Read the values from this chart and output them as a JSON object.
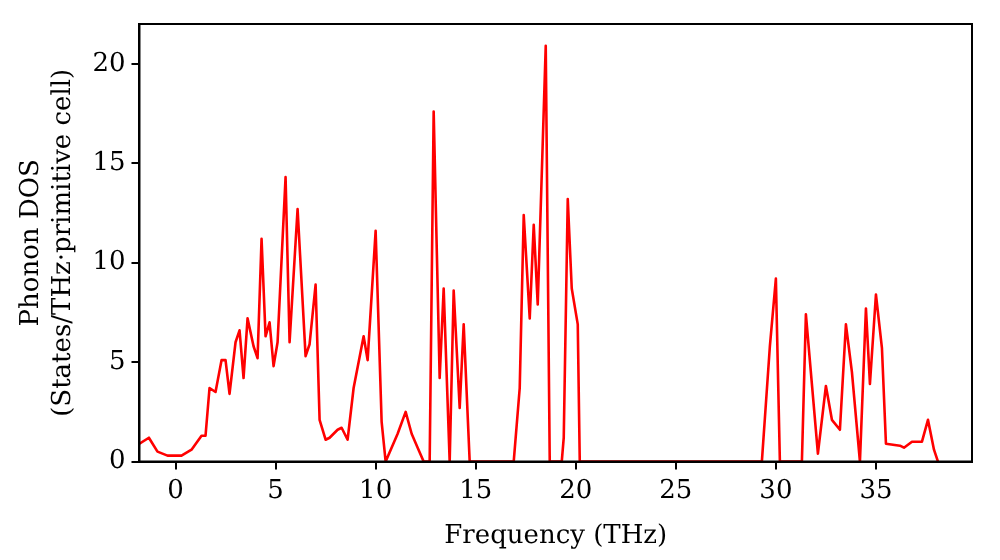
{
  "chart_data": {
    "type": "line",
    "xlabel": "Frequency (THz)",
    "ylabel": "Phonon DOS\n(States/THz·primitive cell)",
    "xlim": [
      -1.8,
      39.8
    ],
    "ylim": [
      0,
      22
    ],
    "xticks": [
      0,
      5,
      10,
      15,
      20,
      25,
      30,
      35
    ],
    "yticks": [
      0,
      5,
      10,
      15,
      20
    ],
    "grid": false,
    "legend": false,
    "marker": "none",
    "line_style": "solid",
    "series": [
      {
        "color": "#ff0000",
        "x": [
          -1.8,
          -1.33,
          -0.9,
          -0.4,
          0.3,
          0.8,
          1.3,
          1.5,
          1.7,
          2.0,
          2.3,
          2.5,
          2.7,
          3.0,
          3.2,
          3.4,
          3.6,
          3.9,
          4.1,
          4.3,
          4.5,
          4.7,
          4.9,
          5.1,
          5.5,
          5.7,
          6.1,
          6.5,
          6.7,
          7.0,
          7.2,
          7.5,
          7.7,
          8.1,
          8.3,
          8.6,
          8.9,
          9.4,
          9.6,
          10.0,
          10.3,
          10.5,
          11.1,
          11.5,
          11.8,
          12.1,
          12.4,
          12.7,
          12.9,
          13.2,
          13.4,
          13.7,
          13.9,
          14.2,
          14.4,
          14.7,
          16.9,
          17.2,
          17.4,
          17.7,
          17.9,
          18.1,
          18.5,
          18.7,
          19.3,
          19.4,
          19.6,
          19.8,
          20.1,
          20.2,
          29.3,
          29.7,
          30.0,
          30.2,
          31.3,
          31.5,
          31.8,
          32.1,
          32.5,
          32.8,
          33.2,
          33.5,
          33.8,
          34.2,
          34.5,
          34.7,
          35.0,
          35.3,
          35.5,
          36.2,
          36.4,
          36.8,
          37.3,
          37.6,
          37.9,
          38.1
        ],
        "values": [
          0.9,
          1.2,
          0.5,
          0.3,
          0.3,
          0.6,
          1.3,
          1.3,
          3.7,
          3.5,
          5.1,
          5.1,
          3.4,
          6.0,
          6.6,
          4.2,
          7.2,
          5.8,
          5.2,
          11.2,
          6.3,
          7.0,
          4.8,
          6.0,
          14.3,
          6.0,
          12.7,
          5.3,
          5.9,
          8.9,
          2.1,
          1.1,
          1.2,
          1.6,
          1.7,
          1.1,
          3.7,
          6.3,
          5.1,
          11.6,
          2.0,
          0,
          1.4,
          2.5,
          1.4,
          0.7,
          0,
          0,
          17.6,
          4.2,
          8.7,
          0,
          8.6,
          2.7,
          6.9,
          0,
          0,
          3.7,
          12.4,
          7.2,
          11.9,
          7.9,
          20.9,
          0,
          0,
          1.2,
          13.2,
          8.7,
          6.9,
          0,
          0,
          5.8,
          9.2,
          0,
          0,
          7.4,
          3.9,
          0.4,
          3.8,
          2.1,
          1.6,
          6.9,
          4.5,
          0,
          7.7,
          3.9,
          8.4,
          5.7,
          0.9,
          0.8,
          0.7,
          1.0,
          1.0,
          2.1,
          0.6,
          0
        ]
      }
    ]
  }
}
